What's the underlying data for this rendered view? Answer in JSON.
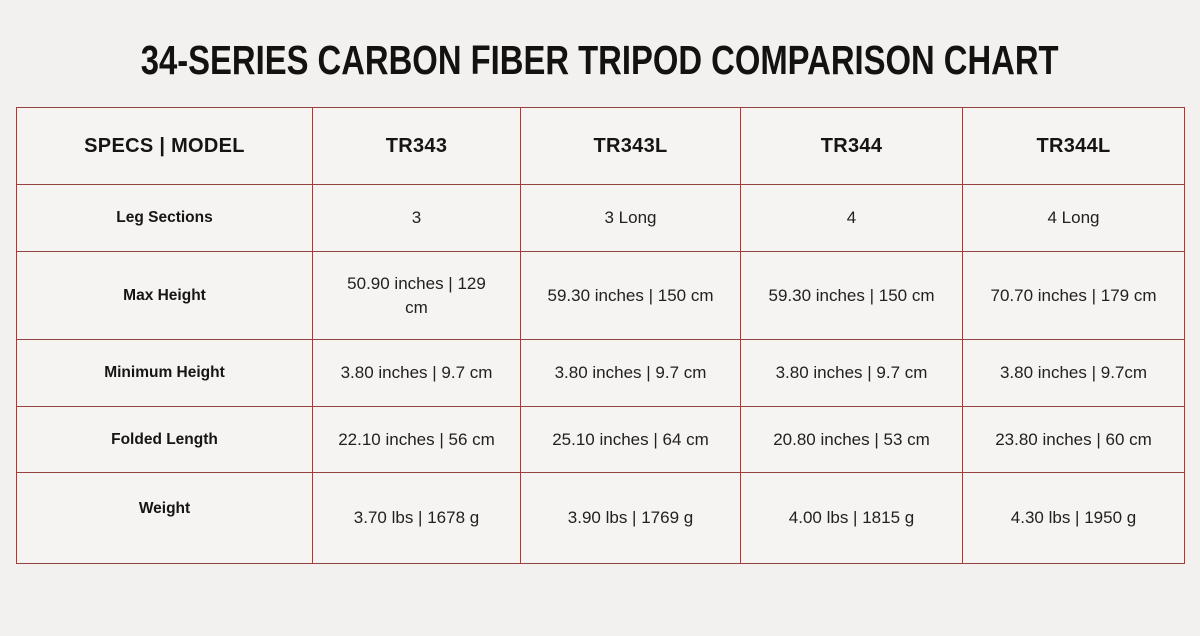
{
  "page": {
    "background": "#f2f1ef",
    "title": "34-SERIES CARBON FIBER TRIPOD COMPARISON CHART",
    "accent_border_color": "#96433f",
    "title_color": "#141111"
  },
  "table": {
    "header": [
      "SPECS | MODEL",
      "TR343",
      "TR343L",
      "TR344",
      "TR344L"
    ],
    "rows": [
      {
        "label": "Leg Sections",
        "values": [
          "3",
          "3 Long",
          "4",
          "4 Long"
        ]
      },
      {
        "label": "Max Height",
        "values": [
          "50.90 inches | 129\ncm",
          "59.30 inches | 150 cm",
          "59.30 inches | 150 cm",
          "70.70 inches | 179 cm"
        ]
      },
      {
        "label": "Minimum Height",
        "values": [
          "3.80 inches | 9.7 cm",
          "3.80 inches | 9.7 cm",
          "3.80 inches | 9.7 cm",
          "3.80 inches | 9.7cm"
        ]
      },
      {
        "label": "Folded Length",
        "values": [
          "22.10 inches | 56 cm",
          "25.10 inches | 64 cm",
          "20.80 inches | 53 cm",
          "23.80 inches | 60 cm"
        ]
      },
      {
        "label": "Weight",
        "values": [
          "3.70 lbs | 1678 g",
          "3.90 lbs | 1769 g",
          "4.00 lbs | 1815 g",
          "4.30 lbs | 1950 g"
        ]
      }
    ]
  },
  "chart_data": {
    "type": "table",
    "title": "34-SERIES CARBON FIBER TRIPOD COMPARISON CHART",
    "columns": [
      "SPECS | MODEL",
      "TR343",
      "TR343L",
      "TR344",
      "TR344L"
    ],
    "rows": [
      [
        "Leg Sections",
        "3",
        "3 Long",
        "4",
        "4 Long"
      ],
      [
        "Max Height",
        "50.90 inches | 129 cm",
        "59.30 inches | 150 cm",
        "59.30 inches | 150 cm",
        "70.70 inches | 179 cm"
      ],
      [
        "Minimum Height",
        "3.80 inches | 9.7 cm",
        "3.80 inches | 9.7 cm",
        "3.80 inches | 9.7 cm",
        "3.80 inches | 9.7cm"
      ],
      [
        "Folded Length",
        "22.10 inches | 56 cm",
        "25.10 inches | 64 cm",
        "20.80 inches | 53 cm",
        "23.80 inches | 60 cm"
      ],
      [
        "Weight",
        "3.70 lbs | 1678 g",
        "3.90 lbs | 1769 g",
        "4.00 lbs | 1815 g",
        "4.30 lbs | 1950 g"
      ]
    ]
  }
}
